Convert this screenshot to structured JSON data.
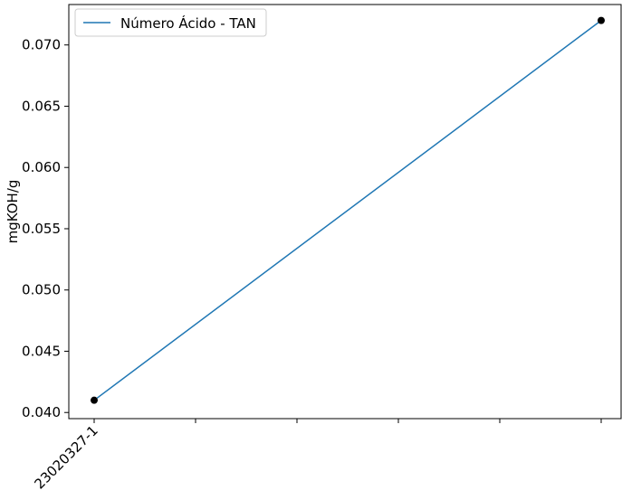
{
  "chart_data": {
    "type": "line",
    "title": "",
    "xlabel": "",
    "ylabel": "mgKOH/g",
    "x_tick_labels": [
      "23020327-1"
    ],
    "x_tick_count": 6,
    "ylim": [
      0.0395,
      0.0733
    ],
    "y_ticks": [
      0.04,
      0.045,
      0.05,
      0.055,
      0.06,
      0.065,
      0.07
    ],
    "y_tick_labels": [
      "0.040",
      "0.045",
      "0.050",
      "0.055",
      "0.060",
      "0.065",
      "0.070"
    ],
    "grid": false,
    "legend_position": "top-left",
    "series": [
      {
        "name": "Número Ácido - TAN",
        "color": "#1f77b4",
        "x": [
          0,
          5
        ],
        "values": [
          0.041,
          0.072
        ]
      }
    ],
    "markers": {
      "color": "#000000",
      "x": [
        0,
        5
      ],
      "values": [
        0.041,
        0.072
      ]
    }
  }
}
